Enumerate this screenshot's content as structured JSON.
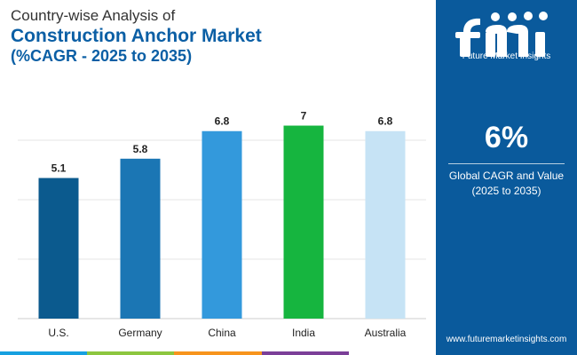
{
  "header": {
    "line1": "Country-wise Analysis of",
    "line2": "Construction Anchor Market",
    "line3": "(%CAGR - 2025 to 2035)"
  },
  "chart_data": {
    "type": "bar",
    "categories": [
      "U.S.",
      "Germany",
      "China",
      "India",
      "Australia"
    ],
    "values": [
      5.1,
      5.8,
      6.8,
      7,
      6.8
    ],
    "value_labels": [
      "5.1",
      "5.8",
      "6.8",
      "7",
      "6.8"
    ],
    "colors": [
      "#0b5a8e",
      "#1b76b4",
      "#3399dc",
      "#16b53f",
      "#c6e3f5"
    ],
    "ylim": [
      0,
      7.5
    ],
    "grid": true,
    "legend": "none"
  },
  "sidebar": {
    "brand": "Future Market Insights",
    "kpi_value": "6%",
    "kpi_label_1": "Global CAGR and Value",
    "kpi_label_2": "(2025 to 2035)",
    "url": "www.futuremarketinsights.com"
  },
  "bottom_bar_colors": [
    "#16a0e0",
    "#8cc63f",
    "#f7941d",
    "#7b3f98",
    "#ffffff"
  ]
}
